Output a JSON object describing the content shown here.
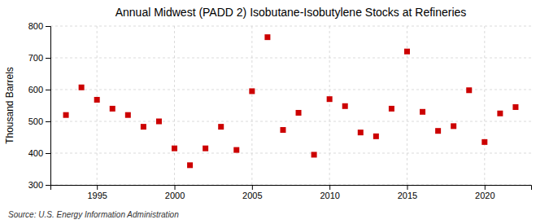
{
  "chart_data": {
    "type": "scatter",
    "title": "Annual Midwest (PADD 2) Isobutane-Isobutylene Stocks at Refineries",
    "ylabel": "Thousand Barrels",
    "annotations": [
      "Source: U.S. Energy Information Administration"
    ],
    "x": [
      1993,
      1994,
      1995,
      1996,
      1997,
      1998,
      1999,
      2000,
      2001,
      2002,
      2003,
      2004,
      2005,
      2006,
      2007,
      2008,
      2009,
      2010,
      2011,
      2012,
      2013,
      2014,
      2015,
      2016,
      2017,
      2018,
      2019,
      2020,
      2021,
      2022
    ],
    "values": [
      520,
      607,
      568,
      540,
      520,
      483,
      500,
      415,
      362,
      415,
      483,
      410,
      595,
      765,
      473,
      527,
      395,
      570,
      548,
      465,
      453,
      540,
      720,
      530,
      470,
      485,
      598,
      435,
      525,
      545
    ],
    "xlim": [
      1992,
      2023
    ],
    "xticks": [
      1995,
      2000,
      2005,
      2010,
      2015,
      2020
    ],
    "ylim": [
      300,
      800
    ],
    "yticks": [
      300,
      400,
      500,
      600,
      700,
      800
    ],
    "color": "#cc0000",
    "marker": "square",
    "grid": true
  }
}
